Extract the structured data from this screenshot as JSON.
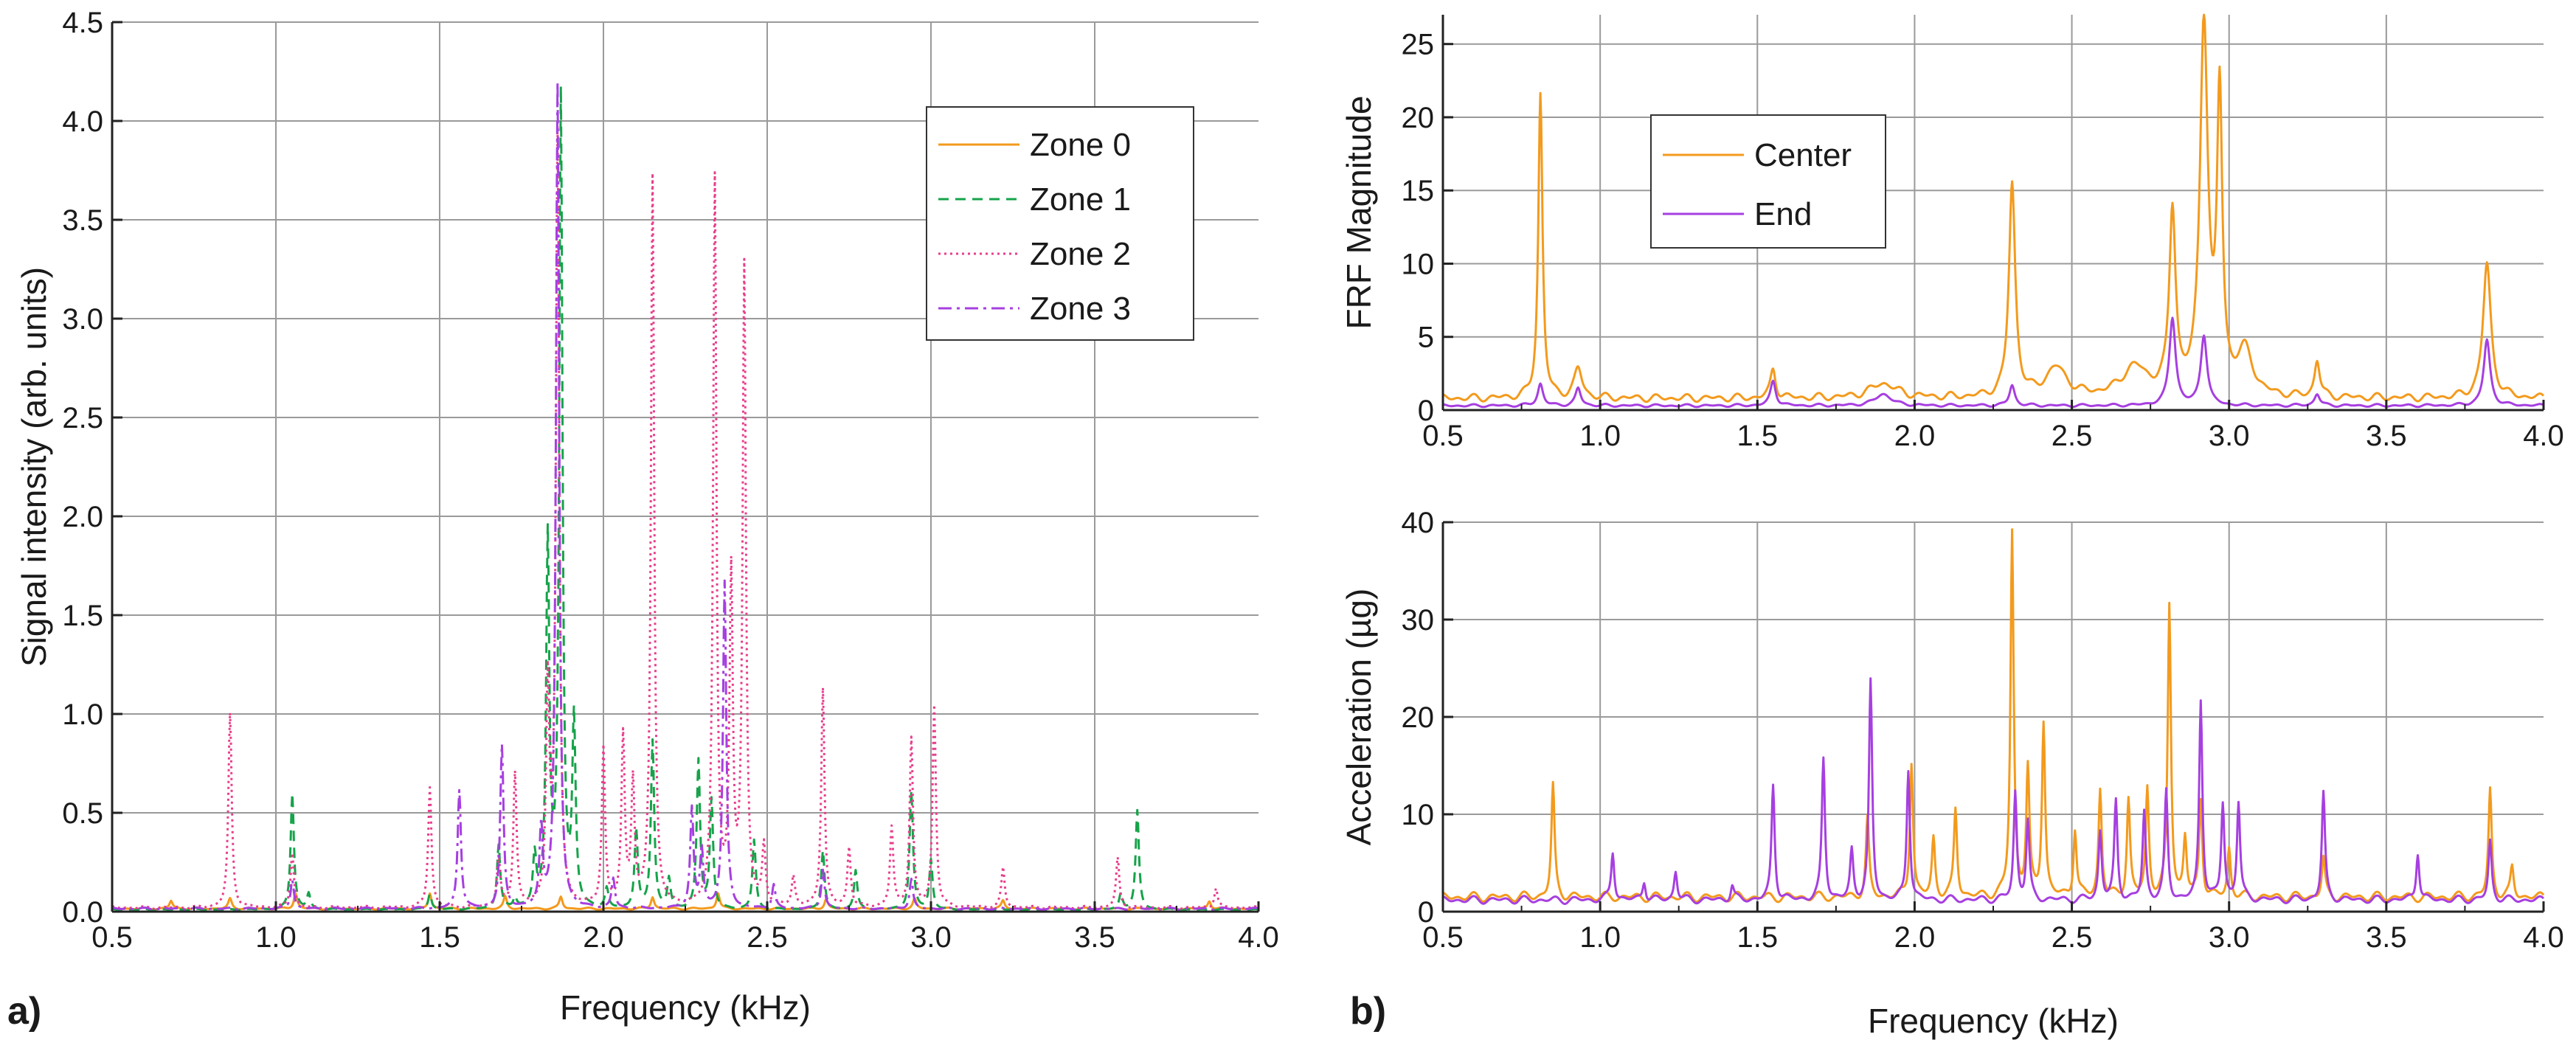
{
  "colors": {
    "orange": "#F39A1D",
    "green": "#16A34A",
    "pink": "#E83E8C",
    "purple": "#A63FE0",
    "grid": "#9a9a9a",
    "axis": "#222222"
  },
  "chart_data": [
    {
      "id": "a",
      "panel_label": "a)",
      "type": "line",
      "title": "",
      "xlabel": "Frequency (kHz)",
      "ylabel": "Signal intensity (arb. units)",
      "xlim": [
        0.5,
        4.0
      ],
      "ylim": [
        0,
        4.5
      ],
      "xticks": [
        0.5,
        1.0,
        1.5,
        2.0,
        2.5,
        3.0,
        3.5,
        4.0
      ],
      "xtick_labels": [
        "0.5",
        "1.0",
        "1.5",
        "2.0",
        "2.5",
        "3.0",
        "3.5",
        "4.0"
      ],
      "yticks": [
        0,
        0.5,
        1.0,
        1.5,
        2.0,
        2.5,
        3.0,
        3.5,
        4.0,
        4.5
      ],
      "ytick_labels": [
        "0.0",
        "0.5",
        "1.0",
        "1.5",
        "2.0",
        "2.5",
        "3.0",
        "3.5",
        "4.0",
        "4.5"
      ],
      "grid": true,
      "legend_position": "top-right",
      "series": [
        {
          "name": "Zone 0",
          "color": "orange",
          "dash": "solid",
          "baseline": 0.015,
          "peaks": [
            [
              0.68,
              0.04,
              0.006
            ],
            [
              0.86,
              0.05,
              0.006
            ],
            [
              1.06,
              0.08,
              0.006
            ],
            [
              1.47,
              0.08,
              0.006
            ],
            [
              1.7,
              0.06,
              0.006
            ],
            [
              1.87,
              0.06,
              0.006
            ],
            [
              2.15,
              0.06,
              0.006
            ],
            [
              2.35,
              0.08,
              0.006
            ],
            [
              2.68,
              0.05,
              0.006
            ],
            [
              2.95,
              0.05,
              0.006
            ],
            [
              3.22,
              0.04,
              0.006
            ],
            [
              3.85,
              0.04,
              0.006
            ]
          ]
        },
        {
          "name": "Zone 1",
          "color": "green",
          "dash": "dashed",
          "baseline": 0.01,
          "peaks": [
            [
              1.05,
              0.59,
              0.006
            ],
            [
              1.1,
              0.08,
              0.006
            ],
            [
              1.47,
              0.08,
              0.006
            ],
            [
              1.68,
              0.32,
              0.006
            ],
            [
              1.73,
              0.05,
              0.006
            ],
            [
              1.79,
              0.25,
              0.006
            ],
            [
              1.83,
              1.85,
              0.006
            ],
            [
              1.87,
              4.1,
              0.006
            ],
            [
              1.91,
              0.93,
              0.006
            ],
            [
              2.01,
              0.1,
              0.006
            ],
            [
              2.1,
              0.4,
              0.006
            ],
            [
              2.15,
              0.85,
              0.006
            ],
            [
              2.2,
              0.15,
              0.006
            ],
            [
              2.29,
              0.75,
              0.006
            ],
            [
              2.33,
              0.55,
              0.006
            ],
            [
              2.46,
              0.35,
              0.006
            ],
            [
              2.67,
              0.3,
              0.006
            ],
            [
              2.77,
              0.2,
              0.006
            ],
            [
              2.94,
              0.6,
              0.006
            ],
            [
              3.0,
              0.25,
              0.006
            ],
            [
              3.63,
              0.5,
              0.006
            ],
            [
              3.58,
              0.08,
              0.006
            ]
          ]
        },
        {
          "name": "Zone 2",
          "color": "pink",
          "dash": "dotted",
          "baseline": 0.02,
          "peaks": [
            [
              0.86,
              0.98,
              0.006
            ],
            [
              1.05,
              0.28,
              0.006
            ],
            [
              1.47,
              0.61,
              0.006
            ],
            [
              1.68,
              0.25,
              0.006
            ],
            [
              1.73,
              0.68,
              0.006
            ],
            [
              1.83,
              1.1,
              0.006
            ],
            [
              1.86,
              3.9,
              0.006
            ],
            [
              2.0,
              0.8,
              0.006
            ],
            [
              2.06,
              0.85,
              0.006
            ],
            [
              2.09,
              0.62,
              0.006
            ],
            [
              2.15,
              3.7,
              0.006
            ],
            [
              2.34,
              3.68,
              0.006
            ],
            [
              2.39,
              1.65,
              0.006
            ],
            [
              2.43,
              3.22,
              0.006
            ],
            [
              2.49,
              0.3,
              0.006
            ],
            [
              2.58,
              0.15,
              0.006
            ],
            [
              2.67,
              1.11,
              0.006
            ],
            [
              2.75,
              0.3,
              0.006
            ],
            [
              2.88,
              0.4,
              0.006
            ],
            [
              2.94,
              0.85,
              0.006
            ],
            [
              3.01,
              1.02,
              0.006
            ],
            [
              3.22,
              0.2,
              0.006
            ],
            [
              3.57,
              0.25,
              0.006
            ],
            [
              3.87,
              0.1,
              0.006
            ]
          ]
        },
        {
          "name": "Zone 3",
          "color": "purple",
          "dash": "dashdot",
          "baseline": 0.015,
          "peaks": [
            [
              1.05,
              0.15,
              0.006
            ],
            [
              1.56,
              0.6,
              0.006
            ],
            [
              1.69,
              0.82,
              0.006
            ],
            [
              1.81,
              0.4,
              0.006
            ],
            [
              1.86,
              4.17,
              0.006
            ],
            [
              2.03,
              0.15,
              0.006
            ],
            [
              2.27,
              0.5,
              0.006
            ],
            [
              2.37,
              1.65,
              0.006
            ],
            [
              2.3,
              0.3,
              0.006
            ],
            [
              2.52,
              0.12,
              0.006
            ],
            [
              2.67,
              0.2,
              0.006
            ],
            [
              2.94,
              0.15,
              0.006
            ]
          ]
        }
      ]
    },
    {
      "id": "b-top",
      "panel_label": "b)",
      "type": "line",
      "title": "",
      "xlabel": "",
      "ylabel": "FRF Magnitude",
      "xlim": [
        0.5,
        4.0
      ],
      "ylim": [
        0,
        27
      ],
      "xticks": [
        0.5,
        1.0,
        1.5,
        2.0,
        2.5,
        3.0,
        3.5,
        4.0
      ],
      "xtick_labels": [
        "0.5",
        "1.0",
        "1.5",
        "2.0",
        "2.5",
        "3.0",
        "3.5",
        "4.0"
      ],
      "yticks": [
        0,
        5,
        10,
        15,
        20,
        25
      ],
      "ytick_labels": [
        "0",
        "5",
        "10",
        "15",
        "20",
        "25"
      ],
      "grid": true,
      "legend_position": "top-left",
      "series": [
        {
          "name": "Center",
          "color": "orange",
          "dash": "solid",
          "baseline": 0.8,
          "peaks": [
            [
              0.81,
              20.8,
              0.008
            ],
            [
              0.93,
              2.0,
              0.015
            ],
            [
              1.55,
              2.0,
              0.01
            ],
            [
              1.9,
              1.0,
              0.05
            ],
            [
              2.31,
              14.6,
              0.012
            ],
            [
              2.45,
              2.0,
              0.04
            ],
            [
              2.7,
              2.0,
              0.05
            ],
            [
              2.82,
              12.5,
              0.012
            ],
            [
              2.92,
              25.5,
              0.015
            ],
            [
              2.97,
              20.0,
              0.01
            ],
            [
              3.05,
              3.0,
              0.03
            ],
            [
              3.28,
              2.5,
              0.01
            ],
            [
              3.82,
              9.2,
              0.015
            ]
          ]
        },
        {
          "name": "End",
          "color": "purple",
          "dash": "solid",
          "baseline": 0.3,
          "peaks": [
            [
              0.81,
              1.5,
              0.01
            ],
            [
              0.93,
              1.2,
              0.01
            ],
            [
              1.55,
              1.7,
              0.01
            ],
            [
              1.9,
              0.8,
              0.03
            ],
            [
              2.31,
              1.4,
              0.01
            ],
            [
              2.82,
              6.0,
              0.012
            ],
            [
              2.92,
              4.8,
              0.012
            ],
            [
              3.28,
              0.8,
              0.01
            ],
            [
              3.82,
              4.5,
              0.012
            ]
          ]
        }
      ]
    },
    {
      "id": "b-bottom",
      "panel_label": "",
      "type": "line",
      "title": "",
      "xlabel": "Frequency (kHz)",
      "ylabel": "Acceleration (µg)",
      "xlim": [
        0.5,
        4.0
      ],
      "ylim": [
        0,
        40
      ],
      "xticks": [
        0.5,
        1.0,
        1.5,
        2.0,
        2.5,
        3.0,
        3.5,
        4.0
      ],
      "xtick_labels": [
        "0.5",
        "1.0",
        "1.5",
        "2.0",
        "2.5",
        "3.0",
        "3.5",
        "4.0"
      ],
      "yticks": [
        0,
        10,
        20,
        30,
        40
      ],
      "ytick_labels": [
        "0",
        "10",
        "20",
        "30",
        "40"
      ],
      "grid": true,
      "legend_position": "none",
      "series": [
        {
          "name": "Center",
          "color": "orange",
          "dash": "solid",
          "baseline": 1.5,
          "peaks": [
            [
              0.85,
              11.5,
              0.006
            ],
            [
              1.85,
              8.0,
              0.006
            ],
            [
              1.99,
              14.0,
              0.006
            ],
            [
              2.06,
              6.0,
              0.006
            ],
            [
              2.13,
              9.0,
              0.006
            ],
            [
              2.31,
              37.5,
              0.006
            ],
            [
              2.36,
              13.0,
              0.006
            ],
            [
              2.41,
              18.0,
              0.006
            ],
            [
              2.51,
              7.0,
              0.006
            ],
            [
              2.59,
              11.0,
              0.006
            ],
            [
              2.68,
              10.0,
              0.006
            ],
            [
              2.74,
              11.0,
              0.006
            ],
            [
              2.81,
              30.0,
              0.006
            ],
            [
              2.86,
              6.0,
              0.006
            ],
            [
              2.91,
              10.0,
              0.006
            ],
            [
              3.0,
              5.0,
              0.006
            ],
            [
              3.3,
              4.0,
              0.006
            ],
            [
              3.83,
              11.0,
              0.006
            ],
            [
              3.9,
              3.0,
              0.006
            ]
          ]
        },
        {
          "name": "End",
          "color": "purple",
          "dash": "solid",
          "baseline": 1.2,
          "peaks": [
            [
              1.04,
              5.0,
              0.006
            ],
            [
              1.14,
              2.0,
              0.006
            ],
            [
              1.24,
              3.0,
              0.006
            ],
            [
              1.42,
              1.5,
              0.006
            ],
            [
              1.55,
              11.8,
              0.006
            ],
            [
              1.71,
              14.5,
              0.006
            ],
            [
              1.8,
              5.0,
              0.006
            ],
            [
              1.86,
              22.3,
              0.006
            ],
            [
              1.98,
              13.5,
              0.006
            ],
            [
              2.32,
              11.0,
              0.006
            ],
            [
              2.36,
              8.0,
              0.006
            ],
            [
              2.59,
              7.0,
              0.006
            ],
            [
              2.64,
              10.0,
              0.006
            ],
            [
              2.73,
              9.0,
              0.006
            ],
            [
              2.8,
              11.0,
              0.006
            ],
            [
              2.91,
              20.5,
              0.006
            ],
            [
              2.98,
              9.8,
              0.006
            ],
            [
              3.03,
              10.0,
              0.006
            ],
            [
              3.3,
              11.0,
              0.006
            ],
            [
              3.6,
              5.0,
              0.006
            ],
            [
              3.83,
              6.0,
              0.006
            ]
          ]
        }
      ]
    }
  ]
}
